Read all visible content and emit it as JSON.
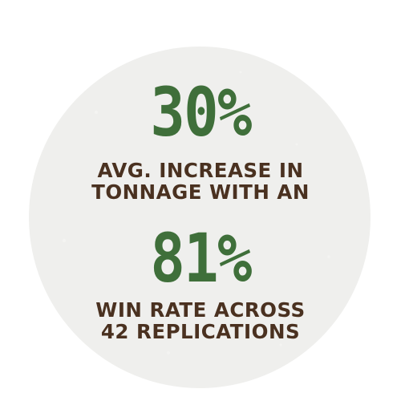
{
  "colors": {
    "background": "#ffffff",
    "circle": "#efefed",
    "accent_green": "#3f6f3a",
    "text_brown": "#4a3120"
  },
  "stats": [
    {
      "value": "30%",
      "caption_lines": [
        "AVG. INCREASE IN",
        "TONNAGE WITH AN"
      ]
    },
    {
      "value": "81%",
      "caption_lines": [
        "WIN RATE ACROSS",
        "42 REPLICATIONS"
      ]
    }
  ]
}
